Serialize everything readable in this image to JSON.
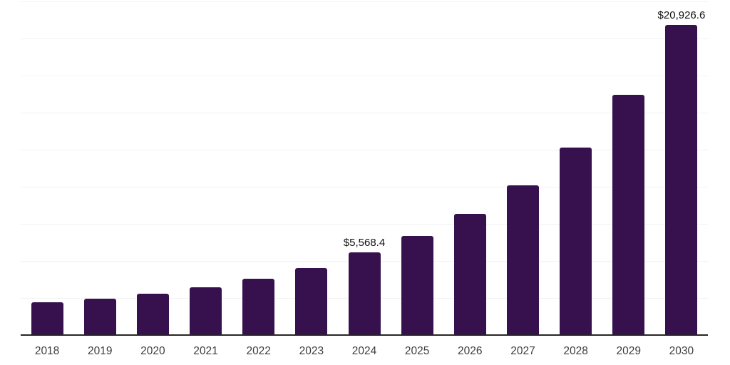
{
  "chart_data": {
    "type": "bar",
    "title": "",
    "xlabel": "",
    "ylabel": "",
    "categories": [
      "2018",
      "2019",
      "2020",
      "2021",
      "2022",
      "2023",
      "2024",
      "2025",
      "2026",
      "2027",
      "2028",
      "2029",
      "2030"
    ],
    "values": [
      2210,
      2475,
      2765,
      3220,
      3800,
      4520,
      5568.4,
      6680,
      8170,
      10100,
      12645,
      16200,
      20926.6
    ],
    "value_labels": [
      {
        "category": "2024",
        "text": "$5,568.4"
      },
      {
        "category": "2030",
        "text": "$20,926.6"
      }
    ],
    "ylim": [
      0,
      22500
    ],
    "gridline_step": 2500,
    "grid": "horizontal-only",
    "y_axis_tick_labels_visible": false,
    "legend": "none",
    "colors": {
      "bar": "#36114E",
      "gridline": "#F2F2F2",
      "axis": "#262626",
      "tick_label": "#3D3D3D",
      "value_label": "#111111",
      "background": "#FFFFFF"
    }
  }
}
